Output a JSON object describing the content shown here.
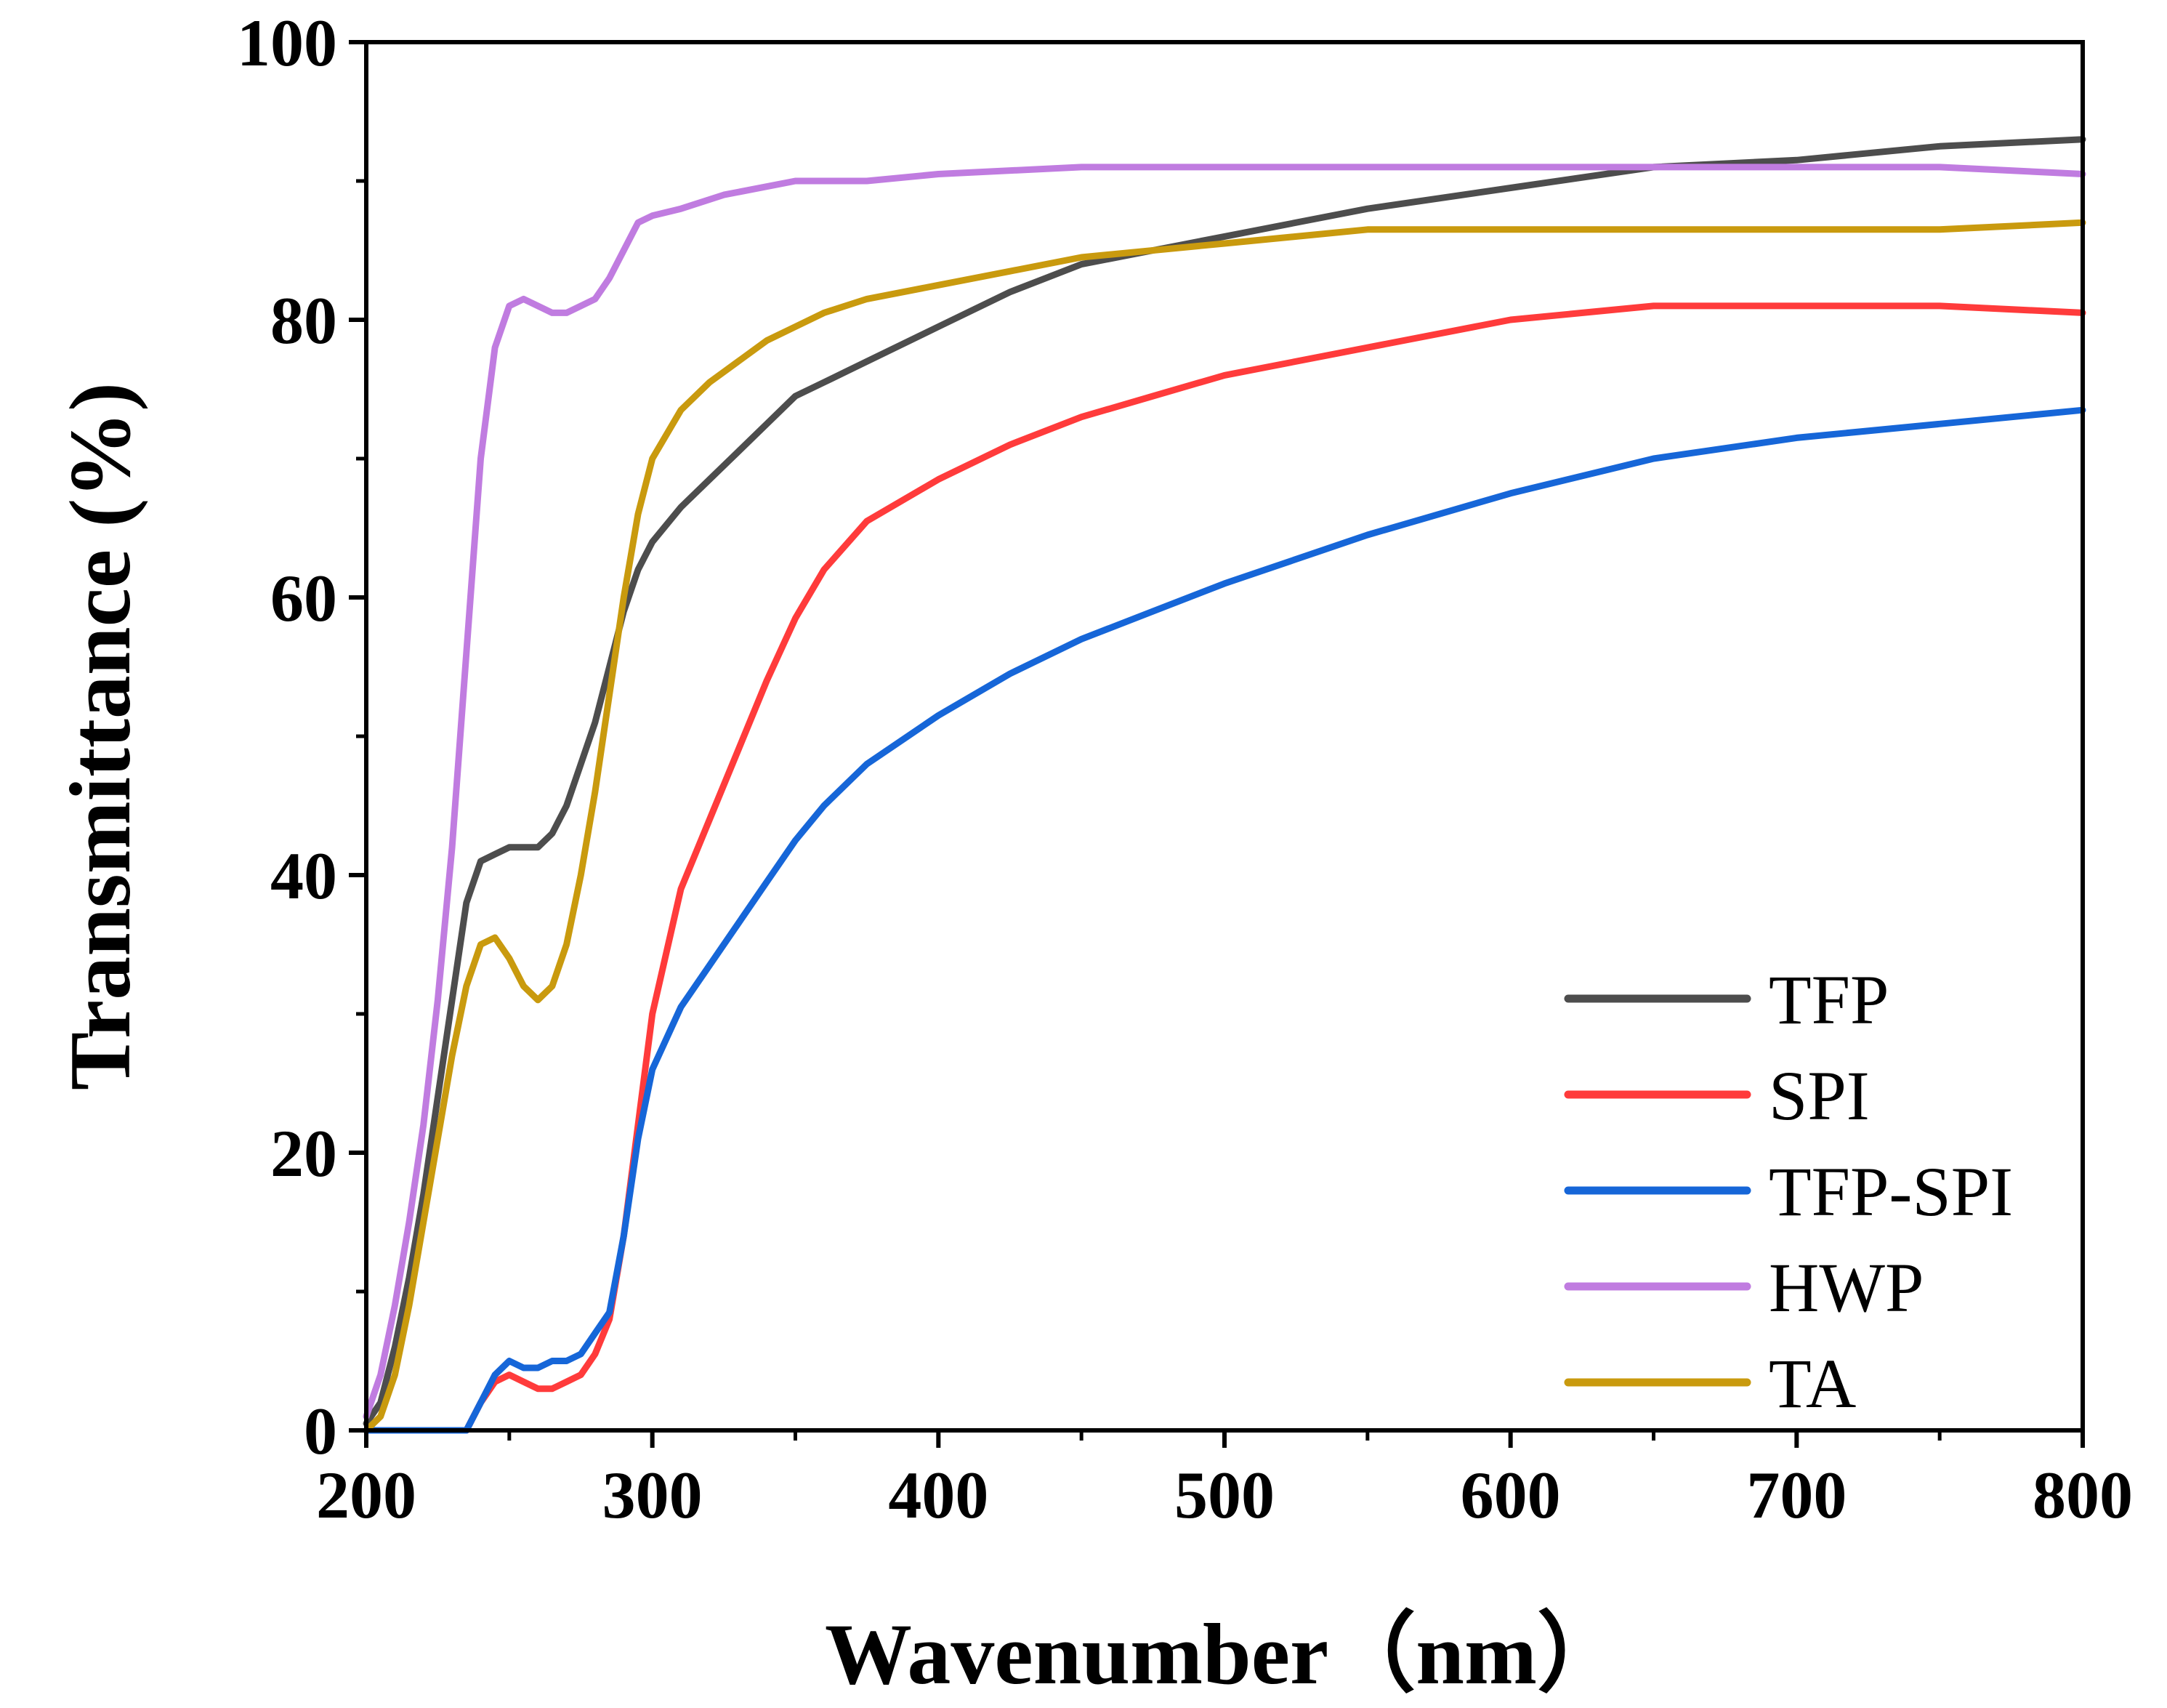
{
  "chart_data": {
    "type": "line",
    "title": "",
    "xlabel": "Wavenumber（nm）",
    "ylabel": "Transmittance (%)",
    "xlim": [
      200,
      800
    ],
    "ylim": [
      0,
      100
    ],
    "xticks": [
      "200",
      "300",
      "400",
      "500",
      "600",
      "700",
      "800"
    ],
    "yticks": [
      "0",
      "20",
      "40",
      "60",
      "80",
      "100"
    ],
    "grid": false,
    "legend_position": "bottom-right",
    "series": [
      {
        "name": "TFP",
        "color": "#4d4d4d",
        "x": [
          200,
          205,
          210,
          215,
          220,
          225,
          230,
          235,
          240,
          245,
          250,
          255,
          260,
          265,
          270,
          275,
          280,
          285,
          290,
          295,
          300,
          310,
          320,
          330,
          340,
          350,
          360,
          375,
          400,
          425,
          450,
          475,
          500,
          550,
          600,
          650,
          700,
          750,
          800
        ],
        "y": [
          0.5,
          2,
          6,
          11,
          17,
          24,
          31,
          38,
          41,
          41.5,
          42,
          42,
          42,
          43,
          45,
          48,
          51,
          55,
          59,
          62,
          64,
          66.5,
          68.5,
          70.5,
          72.5,
          74.5,
          75.5,
          77,
          79.5,
          82,
          84,
          85,
          86,
          88,
          89.5,
          91,
          91.5,
          92.5,
          93
        ]
      },
      {
        "name": "SPI",
        "color": "#ff3b3b",
        "x": [
          200,
          230,
          235,
          240,
          245,
          250,
          255,
          260,
          265,
          270,
          275,
          280,
          285,
          290,
          295,
          300,
          310,
          320,
          330,
          340,
          350,
          360,
          375,
          400,
          425,
          450,
          475,
          500,
          550,
          600,
          650,
          700,
          750,
          800
        ],
        "y": [
          0,
          0,
          0,
          2,
          3.5,
          4,
          3.5,
          3,
          3,
          3.5,
          4,
          5.5,
          8,
          14,
          22,
          30,
          39,
          44,
          49,
          54,
          58.5,
          62,
          65.5,
          68.5,
          71,
          73,
          74.5,
          76,
          78,
          80,
          81,
          81,
          81,
          80.5
        ]
      },
      {
        "name": "TFP-SPI",
        "color": "#1666d8",
        "x": [
          200,
          230,
          235,
          240,
          245,
          250,
          255,
          260,
          265,
          270,
          275,
          280,
          285,
          290,
          295,
          300,
          310,
          320,
          330,
          340,
          350,
          360,
          375,
          400,
          425,
          450,
          475,
          500,
          550,
          600,
          650,
          700,
          750,
          800
        ],
        "y": [
          0,
          0,
          0,
          2,
          4,
          5,
          4.5,
          4.5,
          5,
          5,
          5.5,
          7,
          8.5,
          14,
          21,
          26,
          30.5,
          33.5,
          36.5,
          39.5,
          42.5,
          45,
          48,
          51.5,
          54.5,
          57,
          59,
          61,
          64.5,
          67.5,
          70,
          71.5,
          72.5,
          73.5
        ]
      },
      {
        "name": "HWP",
        "color": "#c07ce0",
        "x": [
          200,
          205,
          210,
          215,
          220,
          225,
          230,
          235,
          240,
          245,
          250,
          255,
          260,
          265,
          270,
          275,
          280,
          285,
          290,
          295,
          300,
          310,
          325,
          350,
          375,
          400,
          450,
          500,
          550,
          600,
          650,
          700,
          750,
          800
        ],
        "y": [
          1,
          4,
          9,
          15,
          22,
          31,
          42,
          56,
          70,
          78,
          81,
          81.5,
          81,
          80.5,
          80.5,
          81,
          81.5,
          83,
          85,
          87,
          87.5,
          88,
          89,
          90,
          90,
          90.5,
          91,
          91,
          91,
          91,
          91,
          91,
          91,
          90.5
        ]
      },
      {
        "name": "TA",
        "color": "#c99a0e",
        "x": [
          200,
          205,
          210,
          215,
          220,
          225,
          230,
          235,
          240,
          245,
          250,
          255,
          260,
          265,
          270,
          275,
          280,
          285,
          290,
          295,
          300,
          310,
          320,
          330,
          340,
          350,
          360,
          375,
          400,
          425,
          450,
          475,
          500,
          550,
          600,
          650,
          700,
          750,
          800
        ],
        "y": [
          0,
          1,
          4,
          9,
          15,
          21,
          27,
          32,
          35,
          35.5,
          34,
          32,
          31,
          32,
          35,
          40,
          46,
          53,
          60,
          66,
          70,
          73.5,
          75.5,
          77,
          78.5,
          79.5,
          80.5,
          81.5,
          82.5,
          83.5,
          84.5,
          85,
          85.5,
          86.5,
          86.5,
          86.5,
          86.5,
          86.5,
          87
        ]
      }
    ]
  }
}
